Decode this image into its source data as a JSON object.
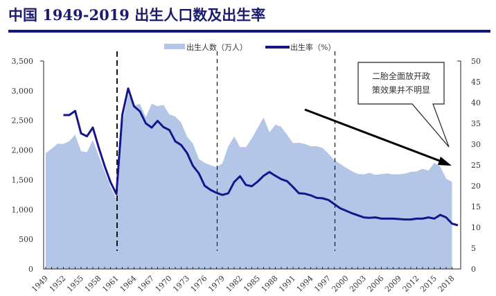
{
  "title": "中国 1949-2019 出生人口数及出生率",
  "chart_data": {
    "type": "area+line",
    "title": "中国 1949-2019 出生人口数及出生率",
    "legend": {
      "placement": "top",
      "entries": [
        "出生人数（万人）",
        "出生率（%）"
      ]
    },
    "left_axis": {
      "range": [
        0,
        3500
      ],
      "ticks": [
        "0",
        "500",
        "1,000",
        "1,500",
        "2,000",
        "2,500",
        "3,000",
        "3,500"
      ]
    },
    "right_axis": {
      "range": [
        0,
        50
      ],
      "ticks": [
        "0",
        "5",
        "10",
        "15",
        "20",
        "25",
        "30",
        "35",
        "40",
        "45",
        "50"
      ]
    },
    "x_tick_labels": [
      "1949",
      "1952",
      "1955",
      "1958",
      "1961",
      "1964",
      "1967",
      "1970",
      "1973",
      "1976",
      "1979",
      "1982",
      "1985",
      "1988",
      "1991",
      "1994",
      "1997",
      "2000",
      "2003",
      "2006",
      "2009",
      "2012",
      "2015",
      "2018"
    ],
    "years_start": 1949,
    "births": [
      1950,
      2023,
      2107,
      2105,
      2151,
      2260,
      1984,
      1965,
      2169,
      1905,
      1647,
      1389,
      1188,
      2451,
      2934,
      2750,
      2780,
      2554,
      2780,
      2740,
      2760,
      2600,
      2566,
      2463,
      2226,
      2109,
      1853,
      1786,
      1745,
      1715,
      1776,
      2064,
      2230,
      2052,
      2050,
      2196,
      2374,
      2550,
      2300,
      2430,
      2391,
      2258,
      2119,
      2126,
      2104,
      2063,
      2067,
      2038,
      1942,
      1834,
      1771,
      1702,
      1647,
      1599,
      1593,
      1617,
      1585,
      1595,
      1608,
      1591,
      1592,
      1604,
      1635,
      1640,
      1687,
      1655,
      1786,
      1723,
      1523,
      1465
    ],
    "birth_rate_start": 1952,
    "birth_rate": [
      37,
      37,
      38,
      32.6,
      31.9,
      34,
      29.2,
      24.8,
      20.9,
      18,
      37,
      43.4,
      39.1,
      37.9,
      35,
      34,
      35.6,
      34.1,
      33.4,
      30.7,
      29.8,
      27.9,
      24.8,
      23,
      20,
      19,
      18.3,
      17.8,
      18.2,
      20.9,
      22.3,
      20.2,
      19.9,
      21,
      22.4,
      23.3,
      22.4,
      21.6,
      21.1,
      19.7,
      18.2,
      18.1,
      17.7,
      17.1,
      17,
      16.6,
      15.6,
      14.6,
      14,
      13.4,
      12.9,
      12.4,
      12.3,
      12.4,
      12.1,
      12.1,
      12.1,
      12,
      11.9,
      11.9,
      12.1,
      12.1,
      12.4,
      12.1,
      13,
      12.4,
      10.9,
      10.5
    ],
    "dashed_lines_years": [
      1961,
      1978,
      1998
    ],
    "annotation": {
      "line1": "二胎全面放开政",
      "line2": "策效果并不明显"
    },
    "colors": {
      "area": "#b4c6e7",
      "line": "#15158c",
      "title": "#1b1b6e"
    }
  }
}
